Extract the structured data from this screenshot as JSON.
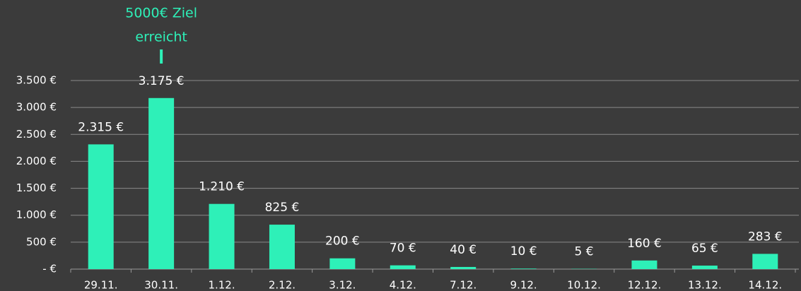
{
  "chart_data": {
    "type": "bar",
    "categories": [
      "29.11.",
      "30.11.",
      "1.12.",
      "2.12.",
      "3.12.",
      "4.12.",
      "7.12.",
      "9.12.",
      "10.12.",
      "12.12.",
      "13.12.",
      "14.12."
    ],
    "values": [
      2315,
      3175,
      1210,
      825,
      200,
      70,
      40,
      10,
      5,
      160,
      65,
      283
    ],
    "value_labels": [
      "2.315 €",
      "3.175 €",
      "1.210 €",
      "825 €",
      "200 €",
      "70 €",
      "40 €",
      "10 €",
      "5 €",
      "160 €",
      "65 €",
      "283 €"
    ],
    "color": "#2ef0b8",
    "ylim": [
      0,
      3500
    ],
    "yticks": [
      {
        "value": 0,
        "label": "-  €"
      },
      {
        "value": 500,
        "label": "500 €"
      },
      {
        "value": 1000,
        "label": "1.000 €"
      },
      {
        "value": 1500,
        "label": "1.500 €"
      },
      {
        "value": 2000,
        "label": "2.000 €"
      },
      {
        "value": 2500,
        "label": "2.500 €"
      },
      {
        "value": 3000,
        "label": "3.000 €"
      },
      {
        "value": 3500,
        "label": "3.500 €"
      }
    ],
    "grid": true,
    "annotation": {
      "text": [
        "5000€ Ziel",
        "erreicht"
      ],
      "x": "30.11."
    }
  }
}
